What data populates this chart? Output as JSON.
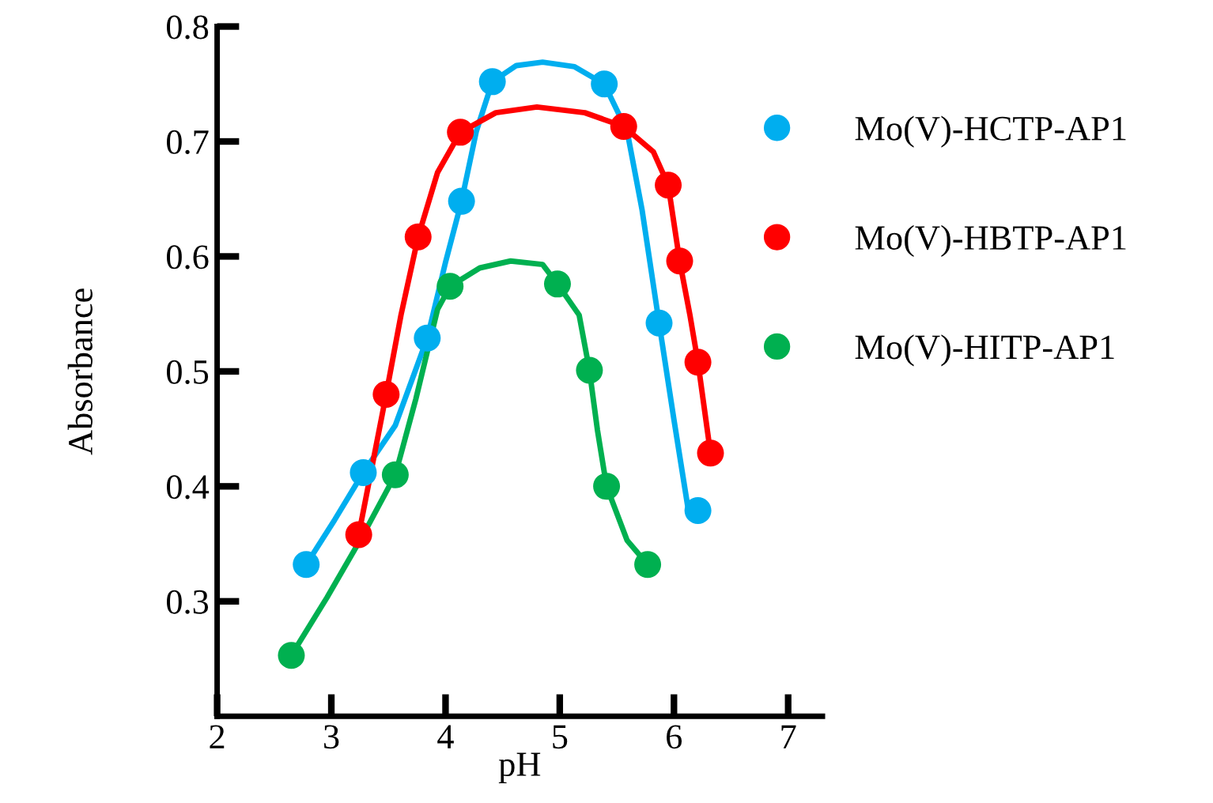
{
  "chart_data": {
    "type": "line",
    "xlabel": "pH",
    "ylabel": "Absorbance",
    "xlim": [
      2,
      7.3
    ],
    "ylim": [
      0.2,
      0.8
    ],
    "xticks": [
      2,
      3,
      4,
      5,
      6,
      7
    ],
    "yticks": [
      0.3,
      0.4,
      0.5,
      0.6,
      0.7,
      0.8
    ],
    "grid": false,
    "legend": "right",
    "line_style": "solid",
    "series": [
      {
        "marker": "none",
        "color": "#00aeef",
        "x": [
          2.78,
          3.03,
          3.28,
          3.56,
          3.84,
          4.0,
          4.14,
          4.27,
          4.41,
          4.62,
          4.85,
          5.13,
          5.39,
          5.59,
          5.72,
          5.87,
          6.0,
          6.12,
          6.21
        ],
        "values": [
          0.332,
          0.371,
          0.412,
          0.453,
          0.529,
          0.595,
          0.648,
          0.709,
          0.752,
          0.766,
          0.769,
          0.765,
          0.75,
          0.709,
          0.641,
          0.542,
          0.458,
          0.383,
          0.379
        ]
      },
      {
        "marker": "none",
        "color": "#ff0000",
        "x": [
          3.24,
          3.48,
          3.61,
          3.76,
          3.93,
          4.13,
          4.44,
          4.8,
          5.22,
          5.56,
          5.82,
          5.95,
          6.05,
          6.14,
          6.21,
          6.32
        ],
        "values": [
          0.358,
          0.48,
          0.549,
          0.617,
          0.673,
          0.708,
          0.725,
          0.73,
          0.725,
          0.713,
          0.691,
          0.662,
          0.596,
          0.549,
          0.508,
          0.429
        ]
      },
      {
        "marker": "none",
        "color": "#00b050",
        "x": [
          2.65,
          2.96,
          3.28,
          3.56,
          3.74,
          3.93,
          4.04,
          4.3,
          4.57,
          4.85,
          4.98,
          5.17,
          5.26,
          5.33,
          5.41,
          5.59,
          5.77
        ],
        "values": [
          0.253,
          0.303,
          0.358,
          0.41,
          0.476,
          0.554,
          0.574,
          0.59,
          0.596,
          0.593,
          0.576,
          0.549,
          0.501,
          0.449,
          0.4,
          0.353,
          0.332
        ]
      },
      {
        "type": "scatter",
        "marker": "circle",
        "name": "Mo(V)-HCTP-AP1",
        "color": "#00aeef",
        "x": [
          2.78,
          3.28,
          3.84,
          4.14,
          4.41,
          5.39,
          5.87,
          6.21
        ],
        "values": [
          0.332,
          0.412,
          0.529,
          0.648,
          0.752,
          0.75,
          0.542,
          0.379
        ]
      },
      {
        "type": "scatter",
        "marker": "circle",
        "name": "Mo(V)-HBTP-AP1",
        "color": "#ff0000",
        "x": [
          3.24,
          3.48,
          3.76,
          4.13,
          5.56,
          5.95,
          6.05,
          6.21,
          6.32
        ],
        "values": [
          0.358,
          0.48,
          0.617,
          0.708,
          0.713,
          0.662,
          0.596,
          0.508,
          0.429
        ]
      },
      {
        "type": "scatter",
        "marker": "circle",
        "name": "Mo(V)-HITP-AP1",
        "color": "#00b050",
        "x": [
          2.65,
          3.56,
          4.04,
          4.98,
          5.26,
          5.41,
          5.77
        ],
        "values": [
          0.253,
          0.41,
          0.574,
          0.576,
          0.501,
          0.4,
          0.332
        ]
      }
    ]
  }
}
